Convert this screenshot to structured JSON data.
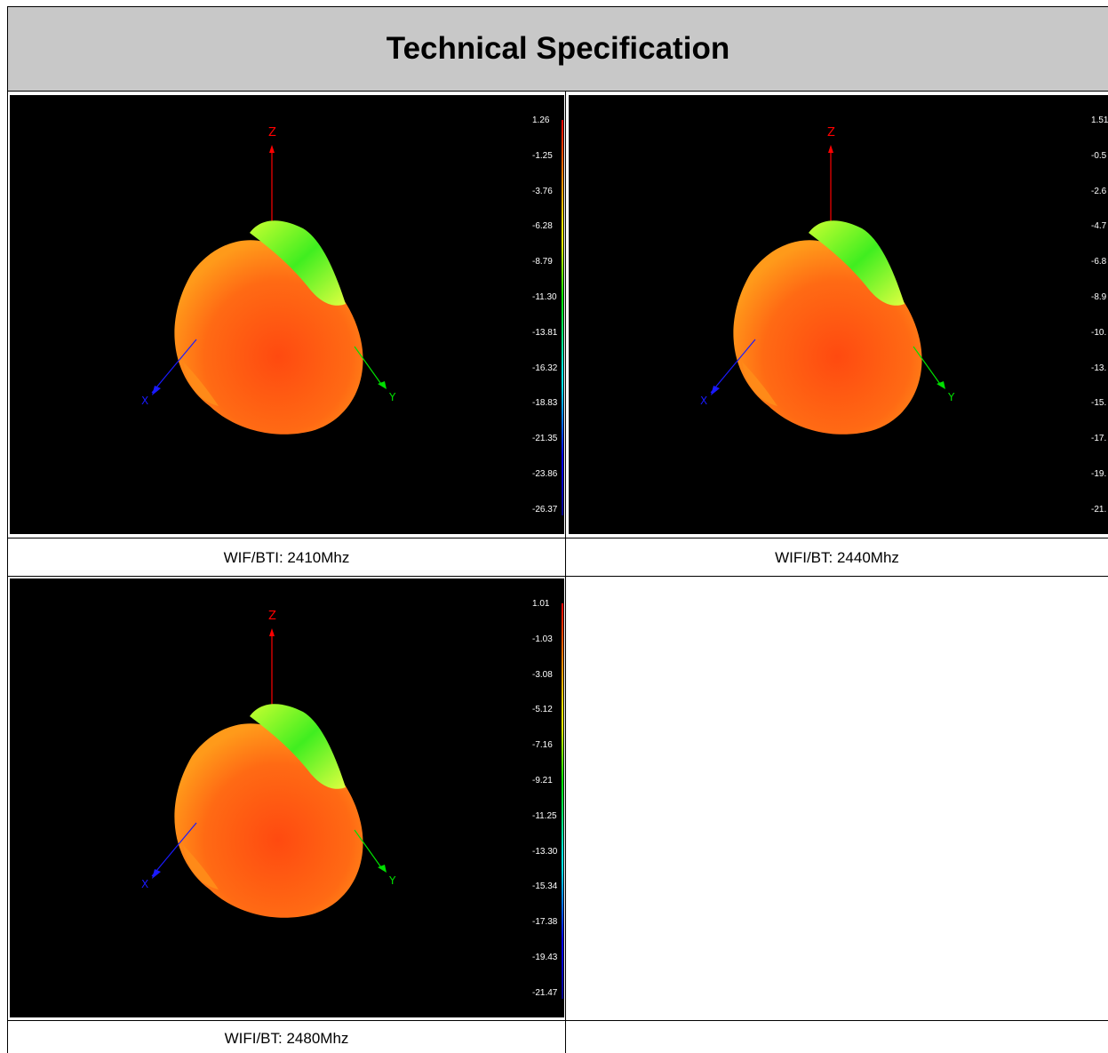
{
  "title": "Technical Specification",
  "axis_labels": {
    "z": "Z",
    "x": "X",
    "y": "Y"
  },
  "colors": {
    "plot_background": "#000000",
    "header_background": "#c8c8c8",
    "z_axis": "#ff0000",
    "x_axis": "#1a1aff",
    "y_axis": "#00e000"
  },
  "plots": [
    {
      "caption": "WIF/BTI: 2410Mhz",
      "scale": [
        "1.26",
        "-1.25",
        "-3.76",
        "-6.28",
        "-8.79",
        "-11.30",
        "-13.81",
        "-16.32",
        "-18.83",
        "-21.35",
        "-23.86",
        "-26.37"
      ]
    },
    {
      "caption": "WIFI/BT: 2440Mhz",
      "scale": [
        "1.51",
        "-0.5",
        "-2.6",
        "-4.7",
        "-6.8",
        "-8.9",
        "-10.",
        "-13.",
        "-15.",
        "-17.",
        "-19.",
        "-21."
      ]
    },
    {
      "caption": "WIFI/BT: 2480Mhz",
      "scale": [
        "1.01",
        "-1.03",
        "-3.08",
        "-5.12",
        "-7.16",
        "-9.21",
        "-11.25",
        "-13.30",
        "-15.34",
        "-17.38",
        "-19.43",
        "-21.47"
      ]
    }
  ]
}
